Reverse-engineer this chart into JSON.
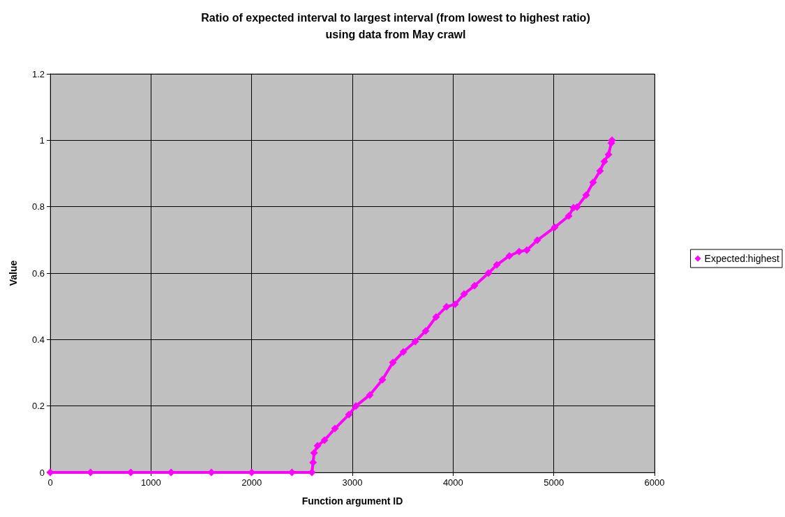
{
  "chart_data": {
    "type": "line",
    "title": "Ratio of expected interval to largest interval (from lowest to highest ratio)\nusing data from May crawl",
    "xlabel": "Function argument ID",
    "ylabel": "Value",
    "x": [
      0,
      400,
      800,
      1200,
      1600,
      2000,
      2400,
      2598,
      2610,
      2620,
      2654,
      2723,
      2827,
      2965,
      3035,
      3173,
      3298,
      3402,
      3506,
      3624,
      3728,
      3831,
      3935,
      4019,
      4109,
      4213,
      4351,
      4434,
      4559,
      4656,
      4732,
      4836,
      5009,
      5148,
      5196,
      5231,
      5321,
      5390,
      5459,
      5501,
      5543,
      5571,
      5578
    ],
    "series": [
      {
        "name": "Expected:highest",
        "color": "#ff00ff",
        "values": [
          0,
          0,
          0,
          0,
          0,
          0,
          0,
          0,
          0.03,
          0.059,
          0.08,
          0.097,
          0.132,
          0.174,
          0.2,
          0.233,
          0.279,
          0.331,
          0.363,
          0.394,
          0.426,
          0.468,
          0.499,
          0.506,
          0.537,
          0.562,
          0.6,
          0.625,
          0.652,
          0.665,
          0.669,
          0.699,
          0.738,
          0.772,
          0.797,
          0.799,
          0.835,
          0.873,
          0.908,
          0.936,
          0.957,
          0.992,
          1.0
        ]
      }
    ],
    "xlim": [
      0,
      6000
    ],
    "xticks": [
      0,
      1000,
      2000,
      3000,
      4000,
      5000,
      6000
    ],
    "ylim": [
      0,
      1.2
    ],
    "yticks": [
      0,
      0.2,
      0.4,
      0.6,
      0.8,
      1,
      1.2
    ],
    "grid": true,
    "legend": "right",
    "marker": "diamond",
    "line_style": "solid"
  }
}
